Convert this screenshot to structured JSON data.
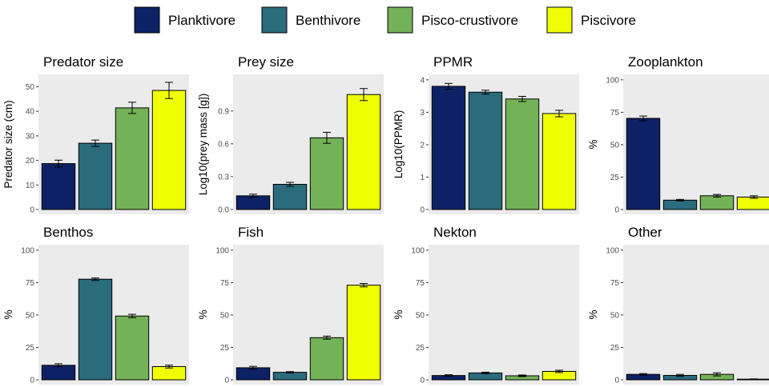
{
  "legend": {
    "items": [
      {
        "label": "Planktivore",
        "color": "#0d2266"
      },
      {
        "label": "Benthivore",
        "color": "#2a6b7c"
      },
      {
        "label": "Pisco-crustivore",
        "color": "#73b256"
      },
      {
        "label": "Piscivore",
        "color": "#f0ff00"
      }
    ]
  },
  "style": {
    "panel_background": "#ebebeb",
    "bar_outline": "#000000",
    "tick_text": "#4d4d4d"
  },
  "chart_data": [
    {
      "type": "bar",
      "title": "Predator size",
      "ylabel": "Predator size (cm)",
      "categories": [
        "Planktivore",
        "Benthivore",
        "Pisco-crustivore",
        "Piscivore"
      ],
      "values": [
        18.7,
        27.0,
        41.4,
        48.5
      ],
      "errors": [
        1.4,
        1.3,
        2.3,
        3.3
      ],
      "ylim": [
        0,
        54.4
      ],
      "yticks": [
        0,
        10,
        20,
        30,
        40,
        50
      ],
      "ytick_labels": [
        "0",
        "10",
        "20",
        "30",
        "40",
        "50"
      ]
    },
    {
      "type": "bar",
      "title": "Prey size",
      "ylabel": "Log10(prey mass [g])",
      "categories": [
        "Planktivore",
        "Benthivore",
        "Pisco-crustivore",
        "Piscivore"
      ],
      "values": [
        0.125,
        0.23,
        0.655,
        1.05
      ],
      "errors": [
        0.015,
        0.018,
        0.05,
        0.055
      ],
      "ylim": [
        0,
        1.22
      ],
      "yticks": [
        0,
        0.3,
        0.6,
        0.9
      ],
      "ytick_labels": [
        "0.0",
        "0.3",
        "0.6",
        "0.9"
      ]
    },
    {
      "type": "bar",
      "title": "PPMR",
      "ylabel": "Log10(PPMR)",
      "categories": [
        "Planktivore",
        "Benthivore",
        "Pisco-crustivore",
        "Piscivore"
      ],
      "values": [
        3.8,
        3.62,
        3.41,
        2.96
      ],
      "errors": [
        0.09,
        0.06,
        0.08,
        0.1
      ],
      "ylim": [
        0,
        4.12
      ],
      "yticks": [
        0,
        1,
        2,
        3,
        4
      ],
      "ytick_labels": [
        "0",
        "1",
        "2",
        "3",
        "4"
      ]
    },
    {
      "type": "bar",
      "title": "Zooplankton",
      "ylabel": "%",
      "categories": [
        "Planktivore",
        "Benthivore",
        "Pisco-crustivore",
        "Piscivore"
      ],
      "values": [
        70.3,
        7.2,
        10.6,
        9.6
      ],
      "errors": [
        1.8,
        0.6,
        1.0,
        1.0
      ],
      "ylim": [
        0,
        103
      ],
      "yticks": [
        0,
        25,
        50,
        75,
        100
      ],
      "ytick_labels": [
        "0",
        "25",
        "50",
        "75",
        "100"
      ]
    },
    {
      "type": "bar",
      "title": "Benthos",
      "ylabel": "%",
      "categories": [
        "Planktivore",
        "Benthivore",
        "Pisco-crustivore",
        "Piscivore"
      ],
      "values": [
        11.2,
        77.6,
        49.2,
        10.2
      ],
      "errors": [
        1.2,
        0.9,
        1.3,
        1.1
      ],
      "ylim": [
        0,
        103
      ],
      "yticks": [
        0,
        25,
        50,
        75,
        100
      ],
      "ytick_labels": [
        "0",
        "25",
        "50",
        "75",
        "100"
      ]
    },
    {
      "type": "bar",
      "title": "Fish",
      "ylabel": "%",
      "categories": [
        "Planktivore",
        "Benthivore",
        "Pisco-crustivore",
        "Piscivore"
      ],
      "values": [
        9.3,
        5.8,
        32.5,
        73.0
      ],
      "errors": [
        1.1,
        0.5,
        1.2,
        1.3
      ],
      "ylim": [
        0,
        103
      ],
      "yticks": [
        0,
        25,
        50,
        75,
        100
      ],
      "ytick_labels": [
        "0",
        "25",
        "50",
        "75",
        "100"
      ]
    },
    {
      "type": "bar",
      "title": "Nekton",
      "ylabel": "%",
      "categories": [
        "Planktivore",
        "Benthivore",
        "Pisco-crustivore",
        "Piscivore"
      ],
      "values": [
        3.3,
        5.3,
        3.1,
        6.5
      ],
      "errors": [
        0.6,
        0.6,
        0.6,
        0.9
      ],
      "ylim": [
        0,
        103
      ],
      "yticks": [
        0,
        25,
        50,
        75,
        100
      ],
      "ytick_labels": [
        "0",
        "25",
        "50",
        "75",
        "100"
      ]
    },
    {
      "type": "bar",
      "title": "Other",
      "ylabel": "%",
      "categories": [
        "Planktivore",
        "Benthivore",
        "Pisco-crustivore",
        "Piscivore"
      ],
      "values": [
        4.2,
        3.4,
        4.2,
        0.5
      ],
      "errors": [
        0.6,
        0.8,
        1.2,
        0.2
      ],
      "ylim": [
        0,
        103
      ],
      "yticks": [
        0,
        25,
        50,
        75,
        100
      ],
      "ytick_labels": [
        "0",
        "25",
        "50",
        "75",
        "100"
      ]
    }
  ]
}
